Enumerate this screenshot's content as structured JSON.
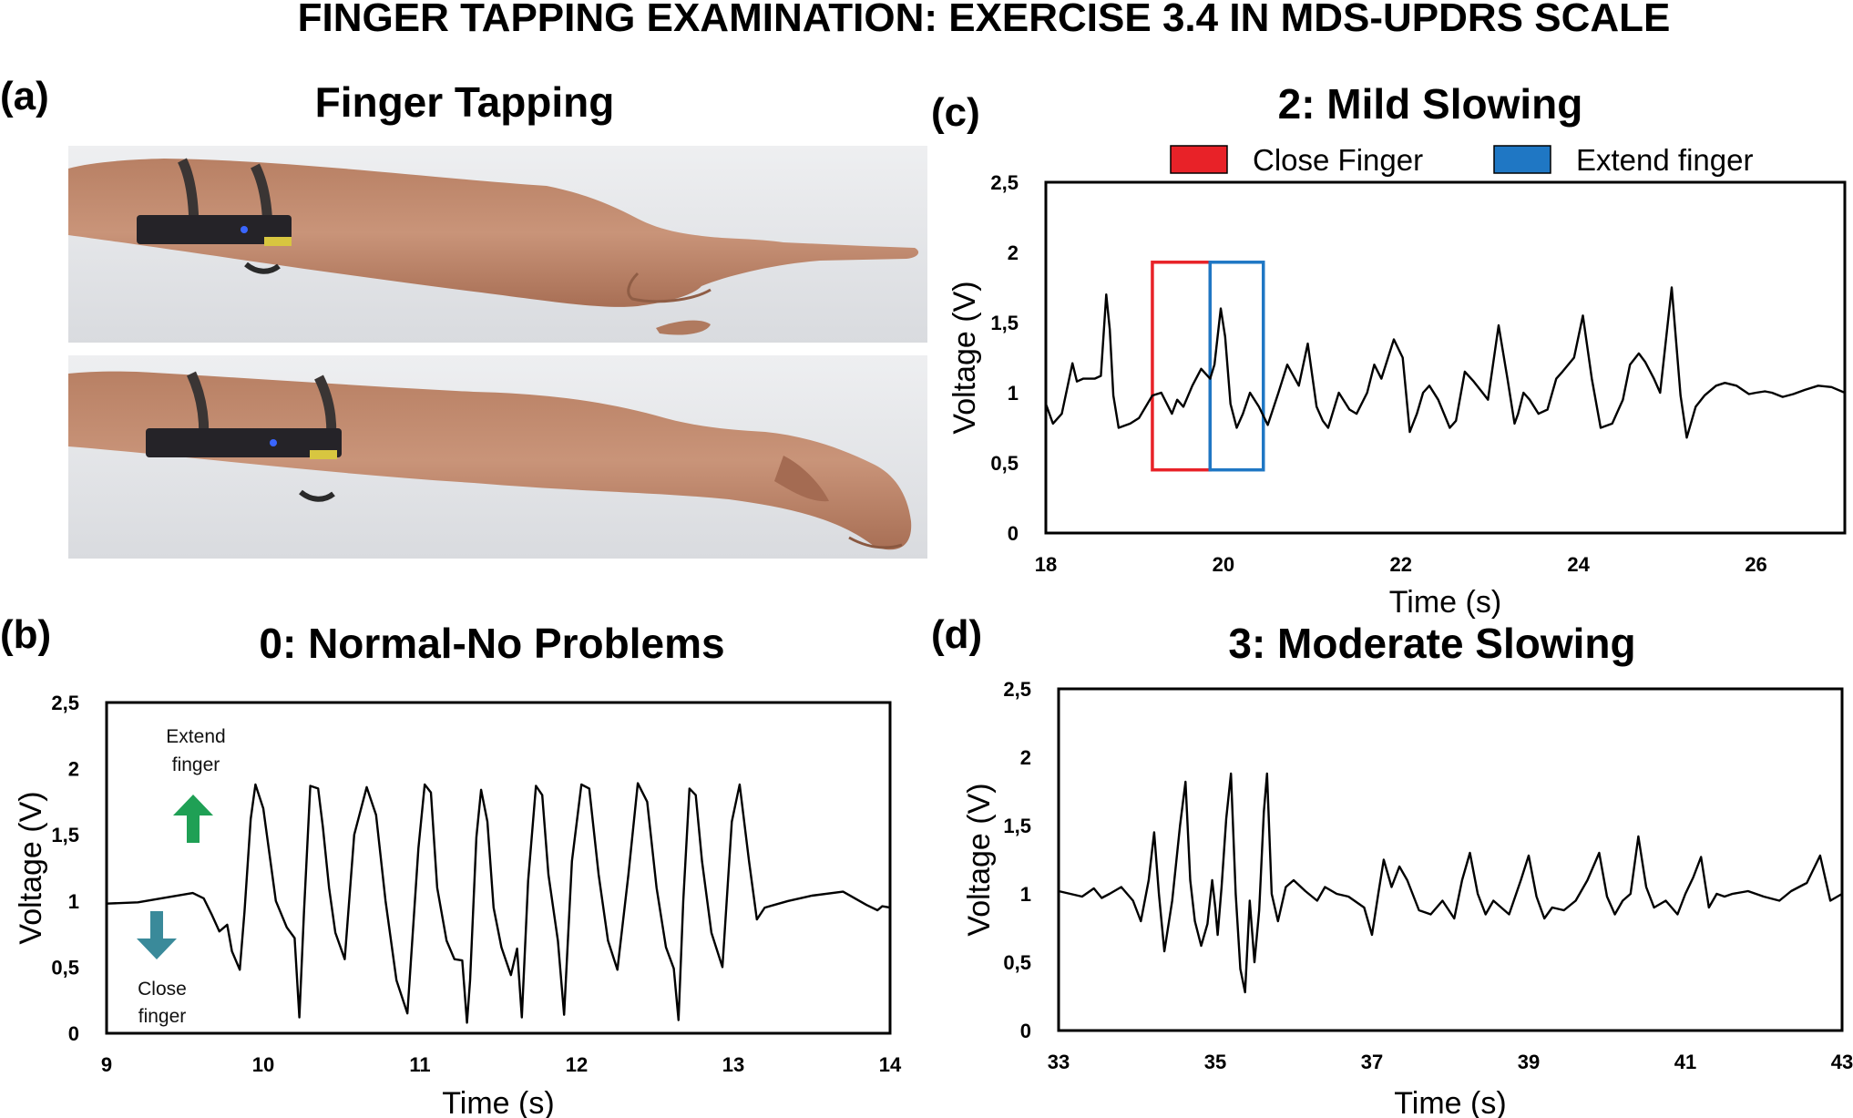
{
  "figure_title": "FINGER TAPPING EXAMINATION: EXERCISE 3.4 IN MDS-UPDRS SCALE",
  "panel_a": {
    "letter": "(a)",
    "title": "Finger Tapping"
  },
  "chart_data": [
    {
      "panel": "(b)",
      "type": "line",
      "title": "0: Normal-No Problems",
      "xlabel": "Time (s)",
      "ylabel": "Voltage (V)",
      "xlim": [
        9,
        14
      ],
      "ylim": [
        0,
        2.5
      ],
      "xticks": [
        "9",
        "10",
        "11",
        "12",
        "13",
        "14"
      ],
      "yticks": [
        "0",
        "0,5",
        "1",
        "1,5",
        "2",
        "2,5"
      ],
      "annotations": [
        {
          "text": [
            "Extend",
            "finger"
          ],
          "arrow": "up",
          "color": "#1fa055"
        },
        {
          "text": [
            "Close",
            "finger"
          ],
          "arrow": "down",
          "color": "#3a8a9a"
        }
      ],
      "series": [
        {
          "x": [
            9.0,
            9.2,
            9.4,
            9.55,
            9.62,
            9.67,
            9.72,
            9.77,
            9.8,
            9.85,
            9.88,
            9.92,
            9.95,
            10.0,
            10.08,
            10.15,
            10.2,
            10.23,
            10.26,
            10.3,
            10.35,
            10.38,
            10.42,
            10.46,
            10.52,
            10.58,
            10.66,
            10.72,
            10.78,
            10.85,
            10.92,
            10.99,
            11.03,
            11.07,
            11.11,
            11.17,
            11.22,
            11.27,
            11.3,
            11.32,
            11.36,
            11.39,
            11.43,
            11.47,
            11.52,
            11.58,
            11.62,
            11.65,
            11.69,
            11.74,
            11.78,
            11.82,
            11.88,
            11.92,
            11.97,
            12.03,
            12.08,
            12.14,
            12.2,
            12.26,
            12.33,
            12.39,
            12.45,
            12.51,
            12.57,
            12.62,
            12.65,
            12.68,
            12.72,
            12.76,
            12.8,
            12.86,
            12.93,
            12.99,
            13.04,
            13.1,
            13.15,
            13.2,
            13.26,
            13.35,
            13.5,
            13.7,
            13.85,
            13.92,
            13.95,
            14.0
          ],
          "y": [
            0.98,
            0.99,
            1.03,
            1.06,
            1.02,
            0.9,
            0.77,
            0.82,
            0.62,
            0.48,
            0.92,
            1.62,
            1.88,
            1.7,
            1.0,
            0.8,
            0.72,
            0.12,
            0.92,
            1.87,
            1.85,
            1.56,
            1.1,
            0.76,
            0.56,
            1.5,
            1.86,
            1.65,
            1.0,
            0.4,
            0.15,
            1.4,
            1.88,
            1.82,
            1.1,
            0.7,
            0.56,
            0.55,
            0.08,
            0.4,
            1.48,
            1.84,
            1.6,
            0.95,
            0.65,
            0.44,
            0.64,
            0.12,
            1.15,
            1.87,
            1.8,
            1.2,
            0.7,
            0.14,
            1.3,
            1.88,
            1.85,
            1.2,
            0.7,
            0.48,
            1.2,
            1.89,
            1.75,
            1.1,
            0.65,
            0.49,
            0.1,
            1.0,
            1.85,
            1.8,
            1.3,
            0.76,
            0.5,
            1.6,
            1.88,
            1.3,
            0.86,
            0.95,
            0.97,
            1.0,
            1.04,
            1.07,
            0.97,
            0.93,
            0.96,
            0.95
          ]
        }
      ]
    },
    {
      "panel": "(c)",
      "type": "line",
      "title": "2:  Mild Slowing",
      "xlabel": "Time (s)",
      "ylabel": "Voltage (V)",
      "xlim": [
        18,
        27
      ],
      "ylim": [
        0,
        2.5
      ],
      "xticks": [
        "18",
        "20",
        "22",
        "24",
        "26"
      ],
      "yticks": [
        "0",
        "0,5",
        "1",
        "1,5",
        "2",
        "2,5"
      ],
      "legend": [
        {
          "name": "Close Finger",
          "color": "#e82228"
        },
        {
          "name": "Extend finger",
          "color": "#1f77c4"
        }
      ],
      "highlight_boxes": [
        {
          "label": "Close Finger",
          "x": [
            19.2,
            19.85
          ],
          "y": [
            0.45,
            1.93
          ],
          "color": "#e82228"
        },
        {
          "label": "Extend finger",
          "x": [
            19.85,
            20.45
          ],
          "y": [
            0.45,
            1.93
          ],
          "color": "#1f77c4"
        }
      ],
      "series": [
        {
          "x": [
            18.0,
            18.08,
            18.18,
            18.3,
            18.35,
            18.42,
            18.55,
            18.62,
            18.68,
            18.72,
            18.76,
            18.82,
            18.95,
            19.05,
            19.2,
            19.3,
            19.42,
            19.48,
            19.55,
            19.65,
            19.75,
            19.85,
            19.9,
            19.97,
            20.02,
            20.08,
            20.15,
            20.22,
            20.3,
            20.4,
            20.5,
            20.62,
            20.72,
            20.85,
            20.95,
            21.05,
            21.12,
            21.18,
            21.3,
            21.42,
            21.5,
            21.62,
            21.7,
            21.78,
            21.92,
            22.02,
            22.1,
            22.18,
            22.25,
            22.32,
            22.42,
            22.55,
            22.62,
            22.72,
            22.82,
            22.92,
            22.98,
            23.1,
            23.2,
            23.28,
            23.32,
            23.38,
            23.45,
            23.55,
            23.65,
            23.75,
            23.82,
            23.95,
            24.05,
            24.15,
            24.25,
            24.38,
            24.5,
            24.58,
            24.68,
            24.75,
            24.85,
            24.92,
            25.05,
            25.15,
            25.22,
            25.32,
            25.42,
            25.55,
            25.65,
            25.78,
            25.85,
            25.92,
            26.0,
            26.1,
            26.18,
            26.3,
            26.42,
            26.55,
            26.7,
            26.85,
            27.0
          ],
          "y": [
            0.92,
            0.78,
            0.85,
            1.21,
            1.08,
            1.1,
            1.1,
            1.12,
            1.7,
            1.45,
            0.98,
            0.75,
            0.78,
            0.82,
            0.98,
            1.0,
            0.85,
            0.95,
            0.9,
            1.05,
            1.17,
            1.1,
            1.2,
            1.6,
            1.4,
            0.92,
            0.75,
            0.85,
            1.0,
            0.9,
            0.77,
            1.0,
            1.2,
            1.05,
            1.35,
            0.9,
            0.8,
            0.75,
            1.0,
            0.88,
            0.85,
            1.0,
            1.2,
            1.1,
            1.38,
            1.25,
            0.72,
            0.85,
            1.0,
            1.05,
            0.95,
            0.75,
            0.8,
            1.15,
            1.08,
            1.0,
            0.95,
            1.48,
            1.1,
            0.78,
            0.85,
            1.0,
            0.95,
            0.85,
            0.88,
            1.1,
            1.15,
            1.25,
            1.55,
            1.1,
            0.75,
            0.78,
            0.95,
            1.2,
            1.28,
            1.22,
            1.1,
            1.0,
            1.75,
            0.98,
            0.68,
            0.9,
            0.98,
            1.05,
            1.07,
            1.05,
            1.02,
            0.99,
            1.0,
            1.01,
            1.0,
            0.97,
            0.99,
            1.02,
            1.05,
            1.04,
            1.0
          ]
        }
      ]
    },
    {
      "panel": "(d)",
      "type": "line",
      "title": "3: Moderate Slowing",
      "xlabel": "Time (s)",
      "ylabel": "Voltage (V)",
      "xlim": [
        33,
        43
      ],
      "ylim": [
        0,
        2.5
      ],
      "xticks": [
        "33",
        "35",
        "37",
        "39",
        "41",
        "43"
      ],
      "yticks": [
        "0",
        "0,5",
        "1",
        "1,5",
        "2",
        "2,5"
      ],
      "series": [
        {
          "x": [
            33.0,
            33.15,
            33.3,
            33.45,
            33.55,
            33.65,
            33.8,
            33.95,
            34.05,
            34.15,
            34.22,
            34.28,
            34.35,
            34.45,
            34.55,
            34.62,
            34.68,
            34.74,
            34.82,
            34.9,
            34.96,
            35.0,
            35.03,
            35.08,
            35.14,
            35.2,
            35.26,
            35.32,
            35.38,
            35.44,
            35.5,
            35.56,
            35.62,
            35.66,
            35.72,
            35.8,
            35.9,
            36.0,
            36.15,
            36.3,
            36.4,
            36.55,
            36.7,
            36.9,
            37.0,
            37.08,
            37.15,
            37.25,
            37.35,
            37.45,
            37.6,
            37.75,
            37.9,
            38.05,
            38.15,
            38.25,
            38.35,
            38.45,
            38.55,
            38.65,
            38.75,
            38.9,
            39.0,
            39.1,
            39.2,
            39.3,
            39.45,
            39.6,
            39.75,
            39.9,
            40.0,
            40.1,
            40.2,
            40.3,
            40.4,
            40.5,
            40.6,
            40.75,
            40.9,
            41.0,
            41.1,
            41.2,
            41.3,
            41.4,
            41.5,
            41.6,
            41.8,
            42.0,
            42.2,
            42.35,
            42.55,
            42.72,
            42.85,
            43.0
          ],
          "y": [
            1.02,
            1.0,
            0.98,
            1.04,
            0.97,
            1.0,
            1.05,
            0.95,
            0.8,
            1.1,
            1.45,
            1.0,
            0.58,
            0.95,
            1.5,
            1.82,
            1.1,
            0.8,
            0.62,
            0.78,
            1.1,
            0.9,
            0.7,
            1.05,
            1.55,
            1.88,
            1.0,
            0.45,
            0.28,
            0.95,
            0.5,
            0.88,
            1.6,
            1.88,
            1.0,
            0.8,
            1.05,
            1.1,
            1.02,
            0.95,
            1.05,
            1.0,
            0.98,
            0.9,
            0.7,
            1.0,
            1.25,
            1.05,
            1.2,
            1.1,
            0.88,
            0.85,
            0.95,
            0.82,
            1.1,
            1.3,
            1.0,
            0.85,
            0.95,
            0.9,
            0.85,
            1.1,
            1.28,
            0.98,
            0.82,
            0.9,
            0.88,
            0.95,
            1.1,
            1.3,
            0.98,
            0.85,
            0.95,
            1.0,
            1.42,
            1.05,
            0.9,
            0.95,
            0.85,
            1.0,
            1.12,
            1.27,
            0.9,
            1.0,
            0.98,
            1.0,
            1.02,
            0.98,
            0.95,
            1.02,
            1.08,
            1.28,
            0.95,
            1.0
          ]
        }
      ]
    }
  ]
}
